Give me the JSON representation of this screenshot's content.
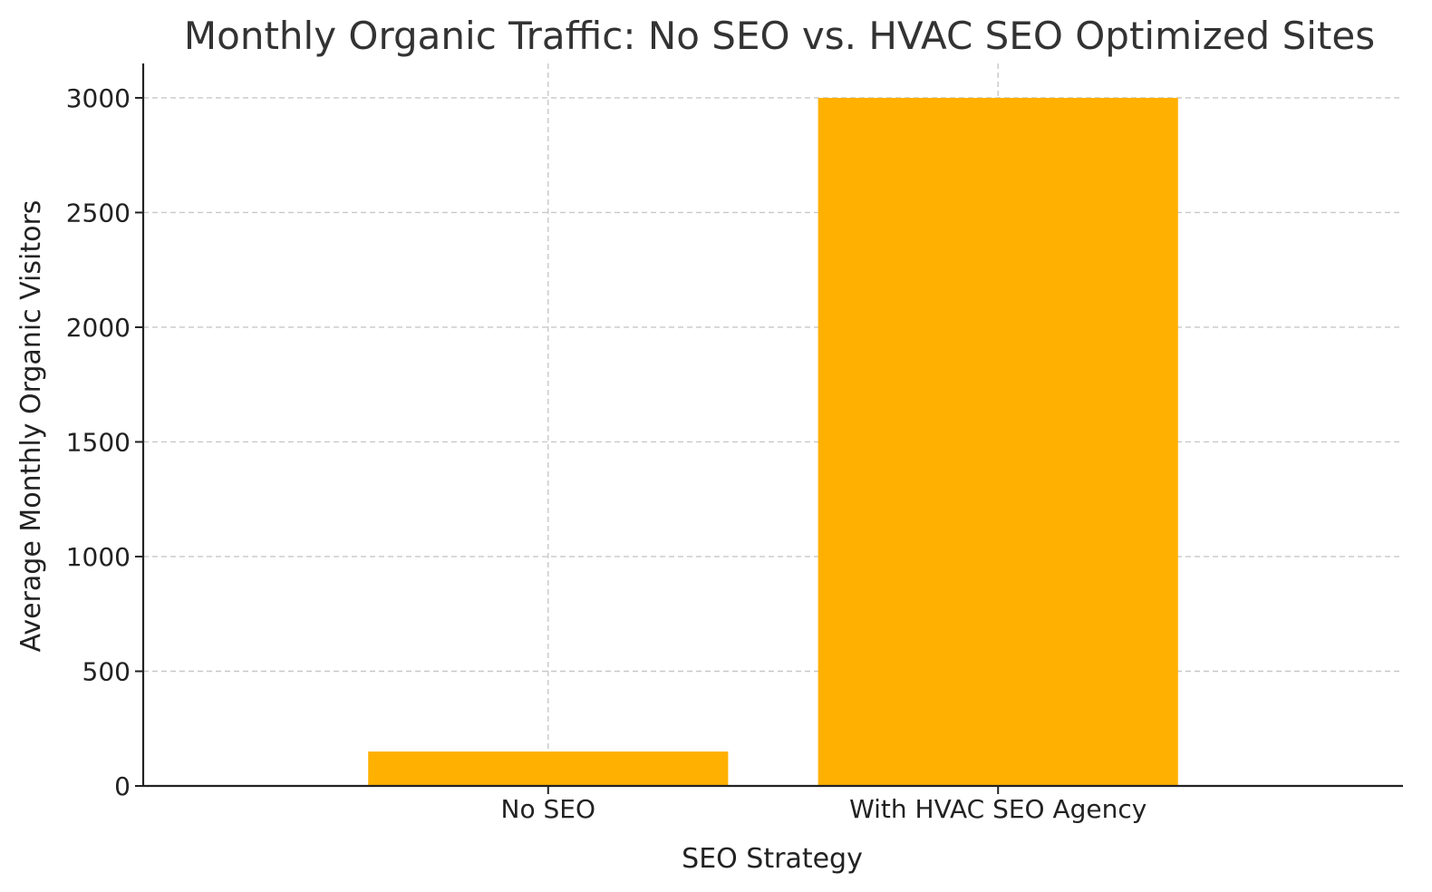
{
  "chart_data": {
    "type": "bar",
    "title": "Monthly Organic Traffic: No SEO vs. HVAC SEO Optimized Sites",
    "xlabel": "SEO Strategy",
    "ylabel": "Average Monthly Organic Visitors",
    "categories": [
      "No SEO",
      "With HVAC SEO Agency"
    ],
    "values": [
      150,
      3000
    ],
    "ylim": [
      0,
      3150
    ],
    "yticks": [
      0,
      500,
      1000,
      1500,
      2000,
      2500,
      3000
    ],
    "grid": true,
    "bar_color": "#FFB000"
  }
}
